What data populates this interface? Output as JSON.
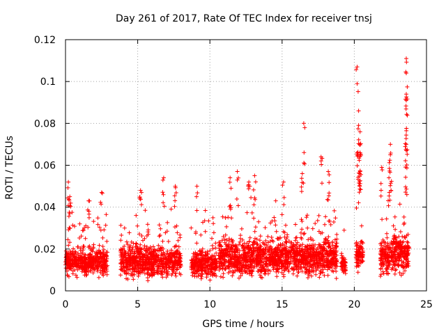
{
  "chart_data": {
    "type": "scatter",
    "title": "Day 261 of 2017, Rate Of TEC Index for receiver tnsj",
    "xlabel": "GPS time / hours",
    "ylabel": "ROTI / TECUs",
    "xlim": [
      0,
      25
    ],
    "ylim": [
      0,
      0.12
    ],
    "xticks": [
      0,
      5,
      10,
      15,
      20,
      25
    ],
    "xtick_labels": [
      "0",
      "5",
      "10",
      "15",
      "20",
      "25"
    ],
    "yticks": [
      0,
      0.02,
      0.04,
      0.06,
      0.08,
      0.1,
      0.12
    ],
    "ytick_labels": [
      "0",
      "0.02",
      "0.04",
      "0.06",
      "0.08",
      "0.1",
      "0.12"
    ],
    "grid": true,
    "marker": "+",
    "color": "#ff0000",
    "series": [
      {
        "name": "ROTI",
        "segments": [
          {
            "x_start": 0.0,
            "x_end": 2.9,
            "y_base": 0.014,
            "y_spread": 0.006
          },
          {
            "x_start": 3.8,
            "x_end": 8.0,
            "y_base": 0.014,
            "y_spread": 0.007
          },
          {
            "x_start": 8.7,
            "x_end": 10.5,
            "y_base": 0.013,
            "y_spread": 0.006
          },
          {
            "x_start": 10.6,
            "x_end": 18.8,
            "y_base": 0.016,
            "y_spread": 0.008
          },
          {
            "x_start": 19.1,
            "x_end": 19.4,
            "y_base": 0.013,
            "y_spread": 0.004
          },
          {
            "x_start": 20.1,
            "x_end": 20.6,
            "y_base": 0.018,
            "y_spread": 0.007
          },
          {
            "x_start": 21.8,
            "x_end": 23.8,
            "y_base": 0.017,
            "y_spread": 0.008
          }
        ],
        "peaks": [
          {
            "x": 0.2,
            "y": 0.052
          },
          {
            "x": 0.3,
            "y": 0.045
          },
          {
            "x": 1.6,
            "y": 0.043
          },
          {
            "x": 2.5,
            "y": 0.047
          },
          {
            "x": 5.2,
            "y": 0.048
          },
          {
            "x": 6.8,
            "y": 0.054
          },
          {
            "x": 7.6,
            "y": 0.05
          },
          {
            "x": 9.1,
            "y": 0.05
          },
          {
            "x": 11.4,
            "y": 0.054
          },
          {
            "x": 11.9,
            "y": 0.057
          },
          {
            "x": 12.7,
            "y": 0.052
          },
          {
            "x": 13.1,
            "y": 0.055
          },
          {
            "x": 15.1,
            "y": 0.052
          },
          {
            "x": 16.4,
            "y": 0.056
          },
          {
            "x": 16.5,
            "y": 0.08
          },
          {
            "x": 17.7,
            "y": 0.064
          },
          {
            "x": 18.2,
            "y": 0.057
          },
          {
            "x": 20.2,
            "y": 0.107
          },
          {
            "x": 20.2,
            "y": 0.099
          },
          {
            "x": 20.3,
            "y": 0.086
          },
          {
            "x": 20.3,
            "y": 0.079
          },
          {
            "x": 20.4,
            "y": 0.076
          },
          {
            "x": 20.4,
            "y": 0.066
          },
          {
            "x": 20.4,
            "y": 0.057
          },
          {
            "x": 21.9,
            "y": 0.059
          },
          {
            "x": 22.5,
            "y": 0.07
          },
          {
            "x": 22.5,
            "y": 0.065
          },
          {
            "x": 22.4,
            "y": 0.054
          },
          {
            "x": 23.6,
            "y": 0.111
          },
          {
            "x": 23.6,
            "y": 0.104
          },
          {
            "x": 23.6,
            "y": 0.094
          },
          {
            "x": 23.6,
            "y": 0.091
          },
          {
            "x": 23.6,
            "y": 0.07
          },
          {
            "x": 23.6,
            "y": 0.067
          }
        ]
      }
    ]
  }
}
